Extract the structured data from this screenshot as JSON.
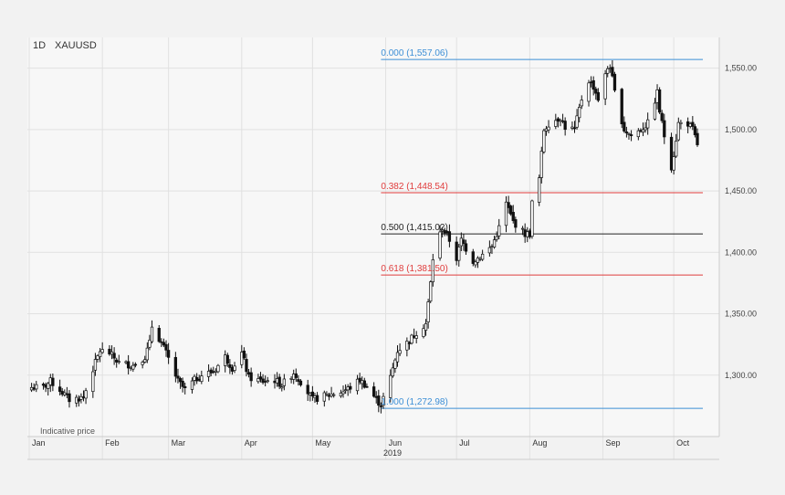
{
  "header": {
    "timeframe": "1D",
    "symbol": "XAUUSD"
  },
  "footer": {
    "note": "Indicative price",
    "year": "2019"
  },
  "colors": {
    "background": "#f2f2f2",
    "plot_background": "#f7f7f7",
    "grid": "#e1e1e1",
    "fib_blue": "#3d8fd6",
    "fib_red": "#e03c3c",
    "fib_black": "#222222",
    "candle_up": "#ffffff",
    "candle_down": "#111111"
  },
  "chart_data": {
    "type": "candlestick",
    "title": "XAUUSD",
    "timeframe": "1D",
    "y_axis": {
      "position": "right",
      "range": [
        1250,
        1575
      ],
      "ticks": [
        1300,
        1350,
        1400,
        1450,
        1500,
        1550
      ],
      "tick_labels": [
        "1,300.00",
        "1,350.00",
        "1,400.00",
        "1,450.00",
        "1,500.00",
        "1,550.00"
      ]
    },
    "x_axis": {
      "start": "2019-01-01",
      "end": "2019-10-11",
      "ticks": [
        {
          "date": "2019-01-01",
          "label": "Jan"
        },
        {
          "date": "2019-02-01",
          "label": "Feb"
        },
        {
          "date": "2019-03-01",
          "label": "Mar"
        },
        {
          "date": "2019-04-01",
          "label": "Apr"
        },
        {
          "date": "2019-05-01",
          "label": "May"
        },
        {
          "date": "2019-06-01",
          "label": "Jun"
        },
        {
          "date": "2019-07-01",
          "label": "Jul"
        },
        {
          "date": "2019-08-01",
          "label": "Aug"
        },
        {
          "date": "2019-09-01",
          "label": "Sep"
        },
        {
          "date": "2019-10-01",
          "label": "Oct"
        }
      ],
      "year_label": "2019"
    },
    "grid": true,
    "fib_levels": [
      {
        "ratio": "0.000",
        "price": 1557.06,
        "label": "0.000 (1,557.06)",
        "color": "#3d8fd6"
      },
      {
        "ratio": "0.382",
        "price": 1448.54,
        "label": "0.382 (1,448.54)",
        "color": "#e03c3c"
      },
      {
        "ratio": "0.500",
        "price": 1415.02,
        "label": "0.500 (1,415.02)",
        "color": "#222222"
      },
      {
        "ratio": "0.618",
        "price": 1381.5,
        "label": "0.618 (1,381.50)",
        "color": "#e03c3c"
      },
      {
        "ratio": "1.000",
        "price": 1272.98,
        "label": "1.000 (1,272.98)",
        "color": "#3d8fd6"
      }
    ],
    "fib_start": "2019-05-30",
    "close_anchors": [
      [
        "2019-01-02",
        1290
      ],
      [
        "2019-01-07",
        1290
      ],
      [
        "2019-01-10",
        1295
      ],
      [
        "2019-01-14",
        1288
      ],
      [
        "2019-01-18",
        1280
      ],
      [
        "2019-01-24",
        1282
      ],
      [
        "2019-01-28",
        1305
      ],
      [
        "2019-01-31",
        1320
      ],
      [
        "2019-02-04",
        1318
      ],
      [
        "2019-02-08",
        1310
      ],
      [
        "2019-02-14",
        1308
      ],
      [
        "2019-02-19",
        1315
      ],
      [
        "2019-02-21",
        1326
      ],
      [
        "2019-02-22",
        1340
      ],
      [
        "2019-02-25",
        1330
      ],
      [
        "2019-02-28",
        1318
      ],
      [
        "2019-03-05",
        1295
      ],
      [
        "2019-03-08",
        1288
      ],
      [
        "2019-03-12",
        1296
      ],
      [
        "2019-03-15",
        1300
      ],
      [
        "2019-03-20",
        1303
      ],
      [
        "2019-03-25",
        1315
      ],
      [
        "2019-03-28",
        1306
      ],
      [
        "2019-04-01",
        1318
      ],
      [
        "2019-04-04",
        1298
      ],
      [
        "2019-04-10",
        1295
      ],
      [
        "2019-04-15",
        1296
      ],
      [
        "2019-04-18",
        1292
      ],
      [
        "2019-04-23",
        1302
      ],
      [
        "2019-04-26",
        1295
      ],
      [
        "2019-05-01",
        1280
      ],
      [
        "2019-05-06",
        1283
      ],
      [
        "2019-05-10",
        1285
      ],
      [
        "2019-05-14",
        1287
      ],
      [
        "2019-05-17",
        1290
      ],
      [
        "2019-05-21",
        1296
      ],
      [
        "2019-05-24",
        1291
      ],
      [
        "2019-05-28",
        1280
      ],
      [
        "2019-05-30",
        1276
      ],
      [
        "2019-06-03",
        1298
      ],
      [
        "2019-06-06",
        1320
      ],
      [
        "2019-06-11",
        1328
      ],
      [
        "2019-06-14",
        1335
      ],
      [
        "2019-06-18",
        1342
      ],
      [
        "2019-06-20",
        1375
      ],
      [
        "2019-06-21",
        1395
      ],
      [
        "2019-06-24",
        1415
      ],
      [
        "2019-06-25",
        1420
      ],
      [
        "2019-06-28",
        1410
      ],
      [
        "2019-07-01",
        1395
      ],
      [
        "2019-07-03",
        1410
      ],
      [
        "2019-07-08",
        1393
      ],
      [
        "2019-07-12",
        1398
      ],
      [
        "2019-07-16",
        1405
      ],
      [
        "2019-07-19",
        1420
      ],
      [
        "2019-07-22",
        1440
      ],
      [
        "2019-07-25",
        1425
      ],
      [
        "2019-07-30",
        1415
      ],
      [
        "2019-08-01",
        1415
      ],
      [
        "2019-08-02",
        1440
      ],
      [
        "2019-08-05",
        1460
      ],
      [
        "2019-08-06",
        1480
      ],
      [
        "2019-08-07",
        1500
      ],
      [
        "2019-08-09",
        1505
      ],
      [
        "2019-08-14",
        1510
      ],
      [
        "2019-08-16",
        1502
      ],
      [
        "2019-08-20",
        1500
      ],
      [
        "2019-08-23",
        1525
      ],
      [
        "2019-08-26",
        1540
      ],
      [
        "2019-08-28",
        1535
      ],
      [
        "2019-08-30",
        1525
      ],
      [
        "2019-09-03",
        1550
      ],
      [
        "2019-09-04",
        1552
      ],
      [
        "2019-09-06",
        1530
      ],
      [
        "2019-09-10",
        1500
      ],
      [
        "2019-09-13",
        1495
      ],
      [
        "2019-09-17",
        1500
      ],
      [
        "2019-09-20",
        1505
      ],
      [
        "2019-09-24",
        1530
      ],
      [
        "2019-09-25",
        1515
      ],
      [
        "2019-09-27",
        1495
      ],
      [
        "2019-09-30",
        1470
      ],
      [
        "2019-10-01",
        1480
      ],
      [
        "2019-10-03",
        1505
      ],
      [
        "2019-10-07",
        1505
      ],
      [
        "2019-10-09",
        1500
      ],
      [
        "2019-10-11",
        1488
      ]
    ]
  }
}
